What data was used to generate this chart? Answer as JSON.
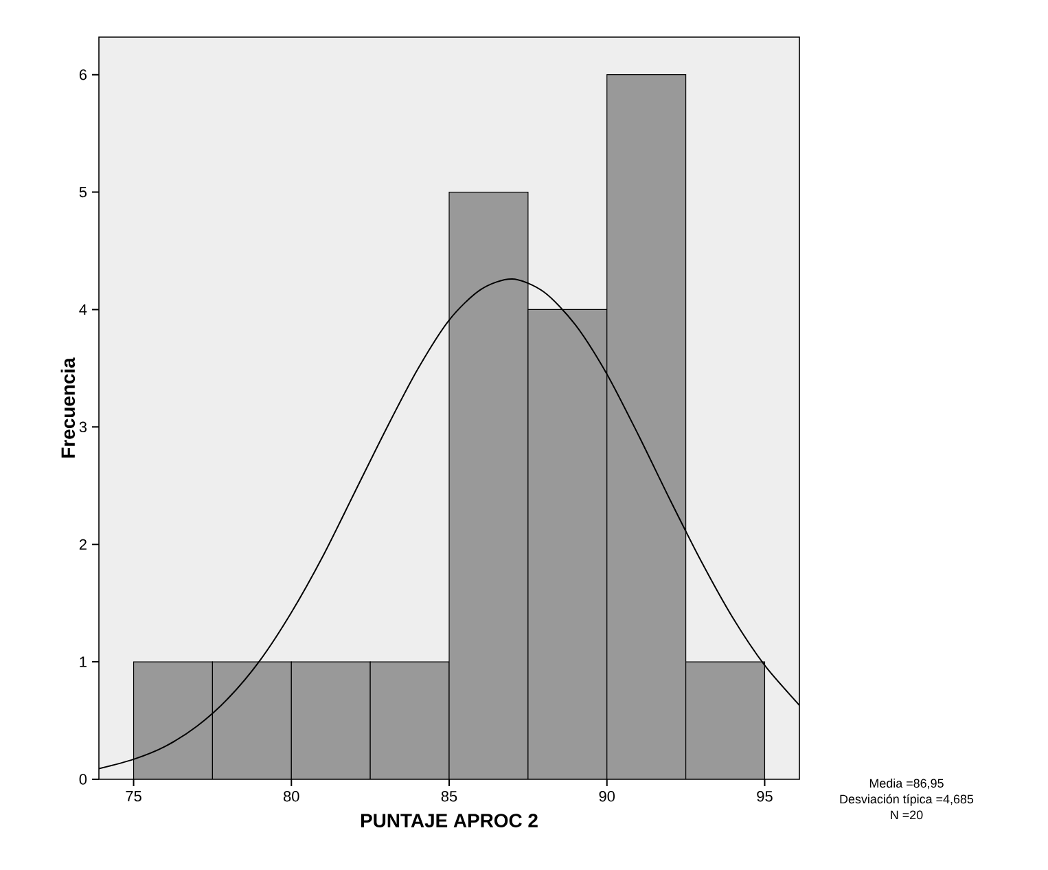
{
  "chart_data": {
    "type": "histogram",
    "xlabel": "PUNTAJE APROC 2",
    "ylabel": "Frecuencia",
    "bins": [
      75,
      77.5,
      80,
      82.5,
      85,
      87.5,
      90,
      92.5,
      95
    ],
    "values": [
      1,
      1,
      1,
      1,
      5,
      4,
      6,
      1
    ],
    "color": "#999999",
    "series": [
      {
        "type": "line",
        "color": "#000000",
        "x": [
          73.9,
          75,
          76,
          77,
          78,
          79,
          80,
          81,
          82,
          83,
          84,
          85,
          86,
          87,
          88,
          89,
          90,
          91,
          92,
          93,
          94,
          95,
          96,
          96.1
        ],
        "values": [
          0.09,
          0.17,
          0.28,
          0.45,
          0.69,
          1.01,
          1.42,
          1.9,
          2.44,
          2.98,
          3.49,
          3.91,
          4.17,
          4.26,
          4.15,
          3.87,
          3.45,
          2.93,
          2.38,
          1.85,
          1.37,
          0.97,
          0.66,
          0.63
        ]
      }
    ],
    "xlim": [
      73.9,
      96.1
    ],
    "ylim": [
      0,
      6.32
    ],
    "xticks": [
      75,
      80,
      85,
      90,
      95
    ],
    "yticks": [
      0,
      1,
      2,
      3,
      4,
      5,
      6
    ],
    "grid": false,
    "marker": "none",
    "line_style": "solid",
    "annotations": [
      "Media =86,95",
      "Desviación típica =4,685",
      "N =20"
    ]
  }
}
